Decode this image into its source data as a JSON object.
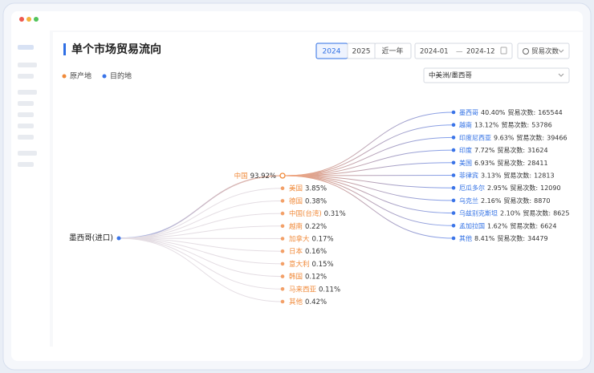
{
  "header": {
    "title": "单个市场贸易流向",
    "years": [
      "2024",
      "2025",
      "近一年"
    ],
    "date_start": "2024-01",
    "date_separator": "—",
    "date_end": "2024-12",
    "metric": "贸易次数",
    "region": "中美洲/墨西哥"
  },
  "legend": [
    "原产地",
    "目的地"
  ],
  "tree": {
    "root": "墨西哥(进口)",
    "count_label": "贸易次数:",
    "origins": [
      {
        "name": "中国",
        "share": "93.92%"
      },
      {
        "name": "美国",
        "share": "3.85%"
      },
      {
        "name": "德国",
        "share": "0.38%"
      },
      {
        "name": "中国(台湾)",
        "share": "0.31%"
      },
      {
        "name": "越南",
        "share": "0.22%"
      },
      {
        "name": "加拿大",
        "share": "0.17%"
      },
      {
        "name": "日本",
        "share": "0.16%"
      },
      {
        "name": "意大利",
        "share": "0.15%"
      },
      {
        "name": "韩国",
        "share": "0.12%"
      },
      {
        "name": "马来西亚",
        "share": "0.11%"
      },
      {
        "name": "其他",
        "share": "0.42%"
      }
    ],
    "destinations": [
      {
        "name": "墨西哥",
        "share": "40.40%",
        "count": "165544"
      },
      {
        "name": "越南",
        "share": "13.12%",
        "count": "53786"
      },
      {
        "name": "印度尼西亚",
        "share": "9.63%",
        "count": "39466"
      },
      {
        "name": "印度",
        "share": "7.72%",
        "count": "31624"
      },
      {
        "name": "美国",
        "share": "6.93%",
        "count": "28411"
      },
      {
        "name": "菲律宾",
        "share": "3.13%",
        "count": "12813"
      },
      {
        "name": "厄瓜多尔",
        "share": "2.95%",
        "count": "12090"
      },
      {
        "name": "乌克兰",
        "share": "2.16%",
        "count": "8870"
      },
      {
        "name": "乌兹别克斯坦",
        "share": "2.10%",
        "count": "8625"
      },
      {
        "name": "孟加拉国",
        "share": "1.62%",
        "count": "6624"
      },
      {
        "name": "其他",
        "share": "8.41%",
        "count": "34479"
      }
    ]
  }
}
